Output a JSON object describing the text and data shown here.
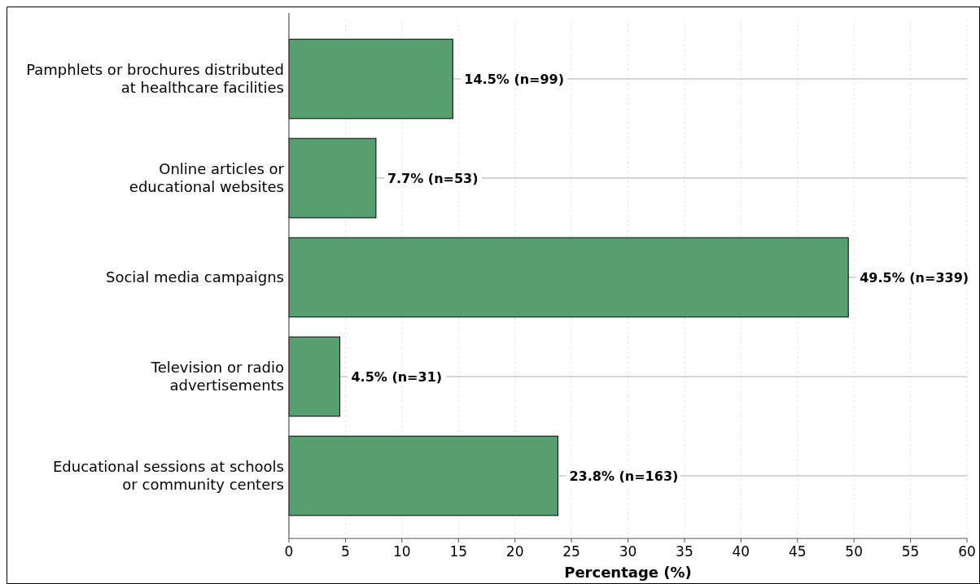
{
  "chart_data": {
    "type": "bar",
    "orientation": "horizontal",
    "xlabel": "Percentage (%)",
    "categories": [
      "Pamphlets or brochures distributed\nat healthcare facilities",
      "Online articles or\neducational websites",
      "Social media campaigns",
      "Television or radio\nadvertisements",
      "Educational sessions at schools\nor community centers"
    ],
    "values": [
      14.5,
      7.7,
      49.5,
      4.5,
      23.8
    ],
    "value_labels": [
      "14.5% (n=99)",
      "7.7% (n=53)",
      "49.5% (n=339)",
      "4.5% (n=31)",
      "23.8% (n=163)"
    ],
    "color": "#579f71",
    "xlim": [
      0,
      60
    ],
    "xticks": [
      0,
      5,
      10,
      15,
      20,
      25,
      30,
      35,
      40,
      45,
      50,
      55,
      60
    ],
    "grid": true
  }
}
